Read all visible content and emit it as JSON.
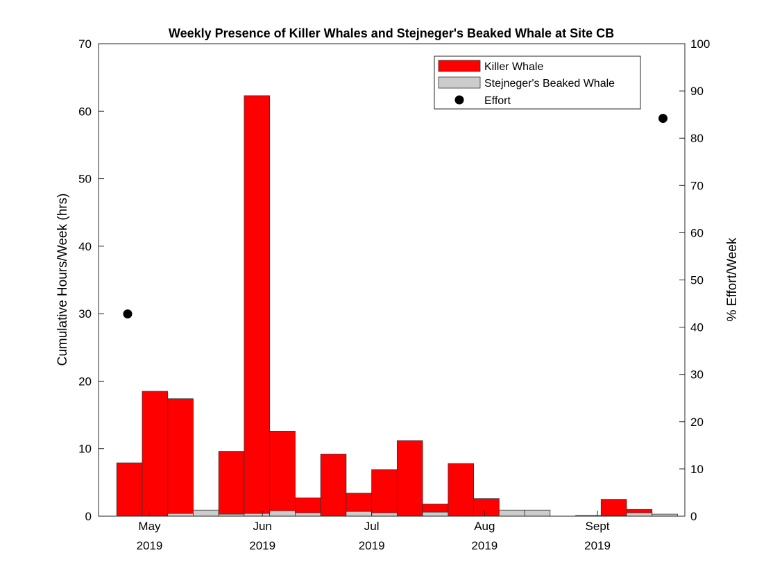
{
  "chart_data": {
    "type": "bar",
    "title": "Weekly Presence of Killer Whales and Stejneger's Beaked Whale at Site CB",
    "ylabel": "Cumulative Hours/Week (hrs)",
    "y2label": "% Effort/Week",
    "ylim": [
      0,
      70
    ],
    "y2lim": [
      0,
      100
    ],
    "yticks": [
      0,
      10,
      20,
      30,
      40,
      50,
      60,
      70
    ],
    "y2ticks": [
      0,
      10,
      20,
      30,
      40,
      50,
      60,
      70,
      80,
      90,
      100
    ],
    "xlim": [
      "2019-04-17",
      "2019-09-25"
    ],
    "xticks": [
      {
        "date": "2019-05-01",
        "month": "May",
        "year": "2019"
      },
      {
        "date": "2019-06-01",
        "month": "Jun",
        "year": "2019"
      },
      {
        "date": "2019-07-01",
        "month": "Jul",
        "year": "2019"
      },
      {
        "date": "2019-08-01",
        "month": "Aug",
        "year": "2019"
      },
      {
        "date": "2019-09-01",
        "month": "Sept",
        "year": "2019"
      }
    ],
    "week_start": [
      "2019-04-22",
      "2019-04-29",
      "2019-05-06",
      "2019-05-13",
      "2019-05-20",
      "2019-05-27",
      "2019-06-03",
      "2019-06-10",
      "2019-06-17",
      "2019-06-24",
      "2019-07-01",
      "2019-07-08",
      "2019-07-15",
      "2019-07-22",
      "2019-07-29",
      "2019-08-05",
      "2019-08-12",
      "2019-08-19",
      "2019-08-26",
      "2019-09-02",
      "2019-09-09",
      "2019-09-16"
    ],
    "series": [
      {
        "name": "Killer Whale",
        "color": "#ff0000",
        "values": [
          7.9,
          18.5,
          17.4,
          0,
          9.6,
          62.3,
          12.6,
          2.7,
          9.2,
          3.4,
          6.9,
          11.2,
          1.8,
          7.8,
          2.6,
          0.8,
          0,
          0,
          0.1,
          2.5,
          1.0,
          0
        ]
      },
      {
        "name": "Stejneger's Beaked Whale",
        "color": "#cccccc",
        "values": [
          0,
          0,
          0.4,
          0.9,
          0.3,
          0.4,
          0.8,
          0.5,
          0,
          0.7,
          0.5,
          0,
          0.6,
          0,
          0,
          0.9,
          0.9,
          0,
          0,
          0.1,
          0.5,
          0.3
        ]
      }
    ],
    "effort": {
      "name": "Effort",
      "color": "#000000",
      "points": [
        {
          "date": "2019-04-25",
          "value": 42.8
        },
        {
          "date": "2019-09-19",
          "value": 84.2
        }
      ]
    },
    "legend_position": "top-right",
    "grid": false
  }
}
